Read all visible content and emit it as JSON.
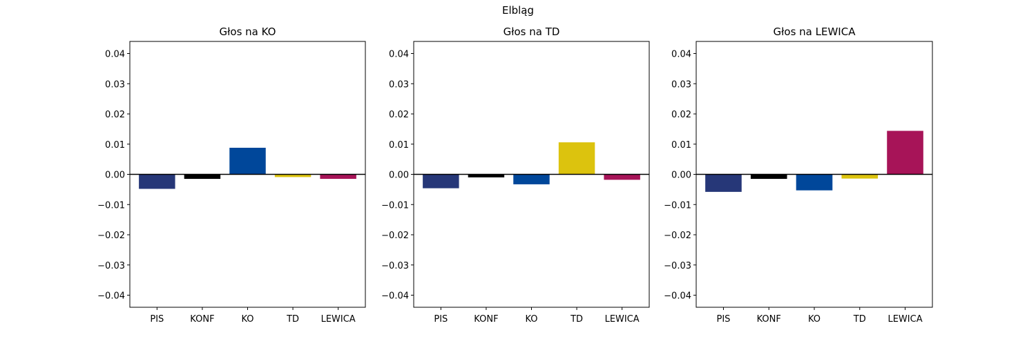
{
  "figure": {
    "suptitle": "Elbląg"
  },
  "chart_data": [
    {
      "type": "bar",
      "title": "Głos na KO",
      "categories": [
        "PIS",
        "KONF",
        "KO",
        "TD",
        "LEWICA"
      ],
      "values": [
        -0.0048,
        -0.0015,
        0.0088,
        -0.0009,
        -0.0015
      ],
      "ylim": [
        -0.044,
        0.044
      ],
      "yticks": [
        -0.04,
        -0.03,
        -0.02,
        -0.01,
        0.0,
        0.01,
        0.02,
        0.03,
        0.04
      ],
      "ytick_labels": [
        "−0.04",
        "−0.03",
        "−0.02",
        "−0.01",
        "0.00",
        "0.01",
        "0.02",
        "0.03",
        "0.04"
      ],
      "colors": [
        "#263778",
        "#000000",
        "#00479a",
        "#dcc30e",
        "#a71458"
      ]
    },
    {
      "type": "bar",
      "title": "Głos na TD",
      "categories": [
        "PIS",
        "KONF",
        "KO",
        "TD",
        "LEWICA"
      ],
      "values": [
        -0.0046,
        -0.001,
        -0.0033,
        0.0106,
        -0.0018
      ],
      "ylim": [
        -0.044,
        0.044
      ],
      "yticks": [
        -0.04,
        -0.03,
        -0.02,
        -0.01,
        0.0,
        0.01,
        0.02,
        0.03,
        0.04
      ],
      "ytick_labels": [
        "−0.04",
        "−0.03",
        "−0.02",
        "−0.01",
        "0.00",
        "0.01",
        "0.02",
        "0.03",
        "0.04"
      ],
      "colors": [
        "#263778",
        "#000000",
        "#00479a",
        "#dcc30e",
        "#a71458"
      ]
    },
    {
      "type": "bar",
      "title": "Głos na LEWICA",
      "categories": [
        "PIS",
        "KONF",
        "KO",
        "TD",
        "LEWICA"
      ],
      "values": [
        -0.0058,
        -0.0015,
        -0.0053,
        -0.0014,
        0.0144
      ],
      "ylim": [
        -0.044,
        0.044
      ],
      "yticks": [
        -0.04,
        -0.03,
        -0.02,
        -0.01,
        0.0,
        0.01,
        0.02,
        0.03,
        0.04
      ],
      "ytick_labels": [
        "−0.04",
        "−0.03",
        "−0.02",
        "−0.01",
        "0.00",
        "0.01",
        "0.02",
        "0.03",
        "0.04"
      ],
      "colors": [
        "#263778",
        "#000000",
        "#00479a",
        "#dcc30e",
        "#a71458"
      ]
    }
  ]
}
